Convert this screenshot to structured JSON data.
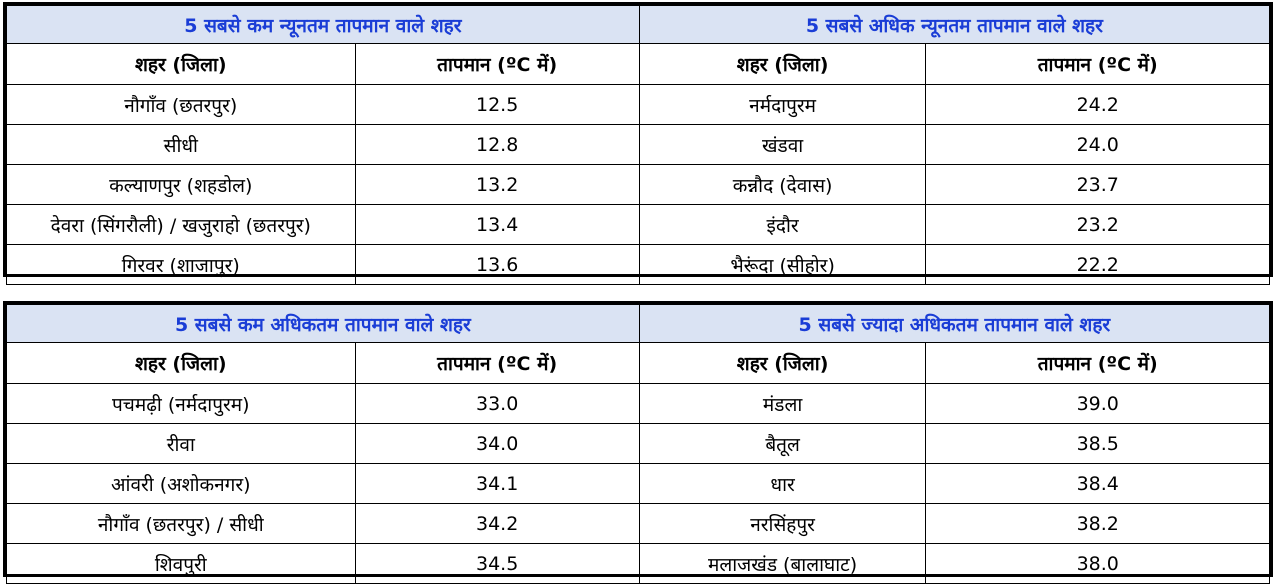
{
  "tables": [
    {
      "left": {
        "title": "5 सबसे कम न्यूनतम तापमान वाले शहर",
        "col_city": "शहर (जिला)",
        "col_temp": "तापमान (ºC में)",
        "rows": [
          {
            "city": "नौगाँव (छतरपुर)",
            "temp": "12.5"
          },
          {
            "city": "सीधी",
            "temp": "12.8"
          },
          {
            "city": "कल्याणपुर (शहडोल)",
            "temp": "13.2"
          },
          {
            "city": "देवरा (सिंगरौली) / खजुराहो (छतरपुर)",
            "temp": "13.4"
          },
          {
            "city": "गिरवर (शाजापुर)",
            "temp": "13.6"
          }
        ]
      },
      "right": {
        "title": "5 सबसे अधिक न्यूनतम तापमान वाले शहर",
        "col_city": "शहर (जिला)",
        "col_temp": "तापमान (ºC में)",
        "rows": [
          {
            "city": "नर्मदापुरम",
            "temp": "24.2"
          },
          {
            "city": "खंडवा",
            "temp": "24.0"
          },
          {
            "city": "कन्नौद (देवास)",
            "temp": "23.7"
          },
          {
            "city": "इंदौर",
            "temp": "23.2"
          },
          {
            "city": "भैरूंदा (सीहोर)",
            "temp": "22.2"
          }
        ]
      }
    },
    {
      "left": {
        "title": "5 सबसे कम अधिकतम तापमान वाले शहर",
        "col_city": "शहर (जिला)",
        "col_temp": "तापमान (ºC में)",
        "rows": [
          {
            "city": "पचमढ़ी (नर्मदापुरम)",
            "temp": "33.0"
          },
          {
            "city": "रीवा",
            "temp": "34.0"
          },
          {
            "city": "आंवरी (अशोकनगर)",
            "temp": "34.1"
          },
          {
            "city": "नौगाँव (छतरपुर) / सीधी",
            "temp": "34.2"
          },
          {
            "city": "शिवपुरी",
            "temp": "34.5"
          }
        ]
      },
      "right": {
        "title": "5 सबसे ज्यादा अधिकतम तापमान वाले शहर",
        "col_city": "शहर (जिला)",
        "col_temp": "तापमान (ºC में)",
        "rows": [
          {
            "city": "मंडला",
            "temp": "39.0"
          },
          {
            "city": "बैतूल",
            "temp": "38.5"
          },
          {
            "city": "धार",
            "temp": "38.4"
          },
          {
            "city": "नरसिंहपुर",
            "temp": "38.2"
          },
          {
            "city": "मलाजखंड (बालाघाट)",
            "temp": "38.0"
          }
        ]
      }
    }
  ]
}
